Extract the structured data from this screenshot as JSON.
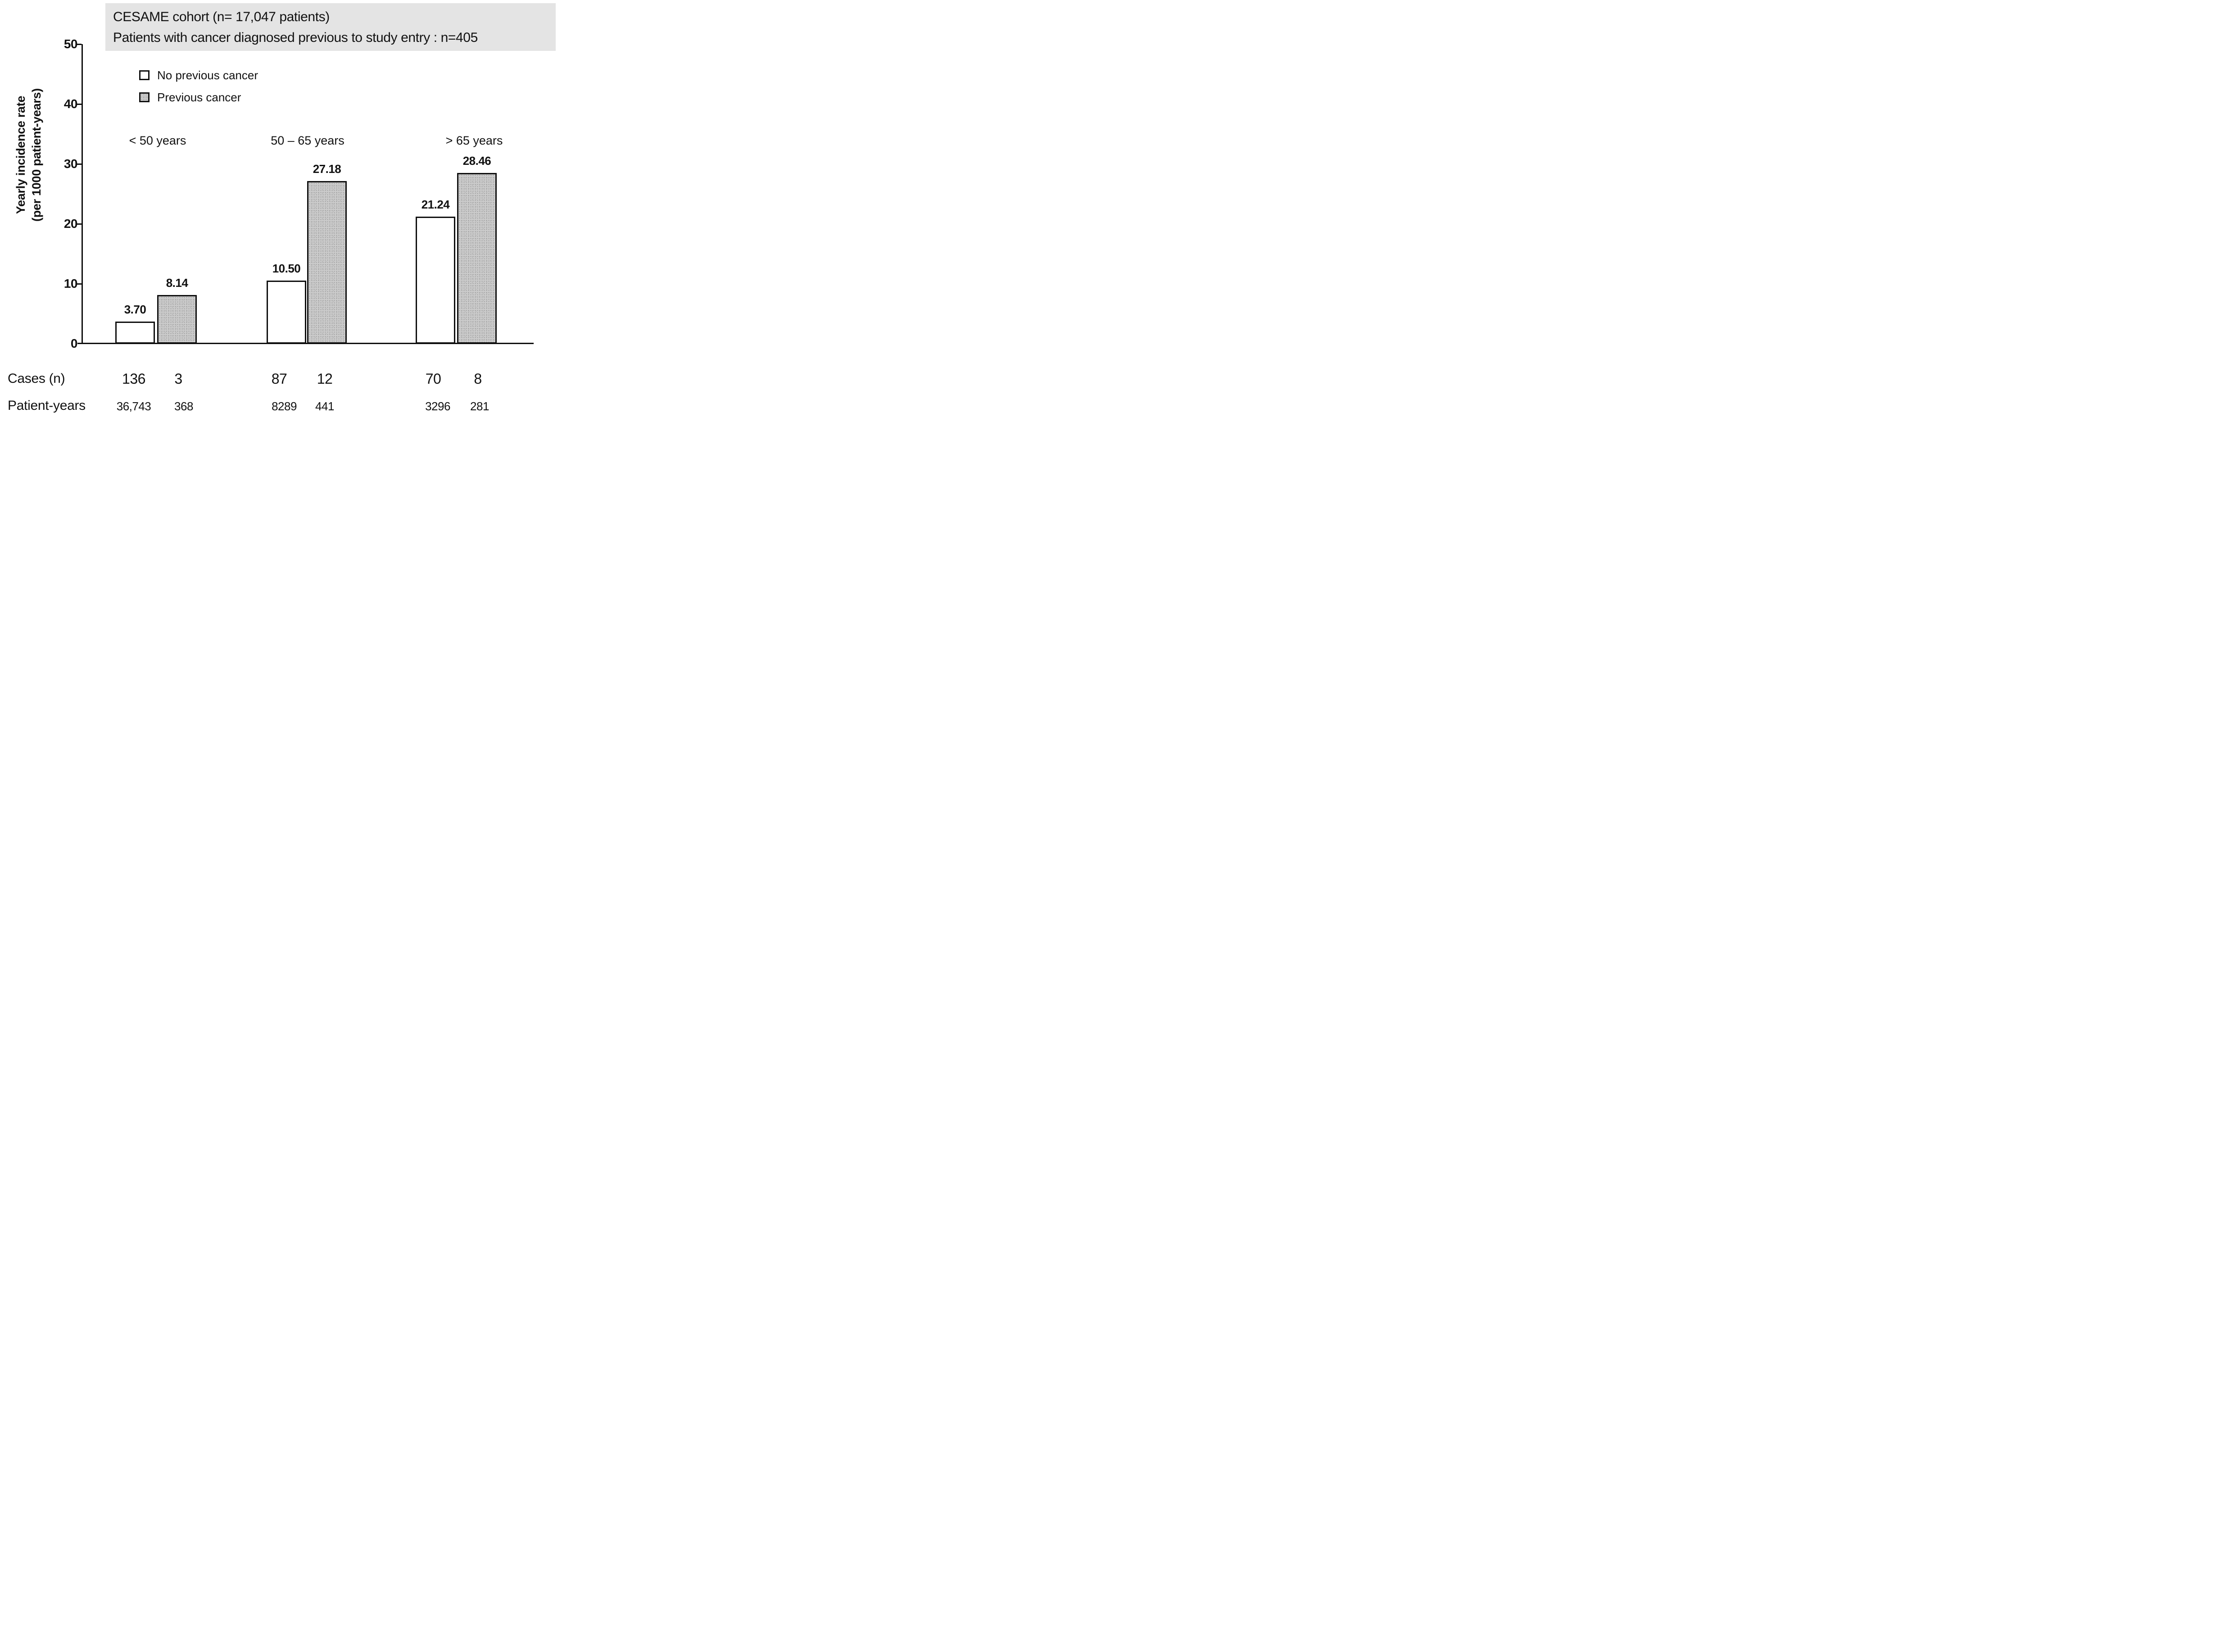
{
  "title": {
    "line1": "CESAME cohort (n= 17,047 patients)",
    "line2": "Patients with cancer diagnosed previous to study entry : n=405"
  },
  "chart_data": {
    "type": "bar",
    "title_lines": [
      "CESAME cohort (n= 17,047 patients)",
      "Patients with cancer diagnosed previous to study entry : n=405"
    ],
    "categories": [
      "< 50 years",
      "50 – 65 years",
      "> 65 years"
    ],
    "series": [
      {
        "name": "No previous cancer",
        "swatch": "white",
        "values": [
          3.7,
          10.5,
          21.24
        ],
        "value_labels": [
          "3.70",
          "10.50",
          "21.24"
        ]
      },
      {
        "name": "Previous cancer",
        "swatch": "gray",
        "values": [
          8.14,
          27.18,
          28.46
        ],
        "value_labels": [
          "8.14",
          "27.18",
          "28.46"
        ]
      }
    ],
    "ylabel": "Yearly incidence rate (per 1000 patient-years)",
    "ylabel_lines": [
      "Yearly incidence rate",
      "(per 1000 patient-years)"
    ],
    "xlabel": "",
    "ylim": [
      0,
      50
    ],
    "yticks": [
      0,
      10,
      20,
      30,
      40,
      50
    ],
    "grid": "off",
    "legend_position": "upper-left-inside"
  },
  "table": {
    "rows": [
      {
        "label": "Cases (n)",
        "values": [
          "136",
          "3",
          "87",
          "12",
          "70",
          "8"
        ]
      },
      {
        "label": "Patient-years",
        "values": [
          "36,743",
          "368",
          "8289",
          "441",
          "3296",
          "281"
        ]
      }
    ]
  },
  "colors": {
    "ink": "#111111",
    "bar_no_previous_fill": "#ffffff",
    "bar_previous_fill": "#cbcbcb",
    "title_box_bg": "#e4e4e4"
  }
}
